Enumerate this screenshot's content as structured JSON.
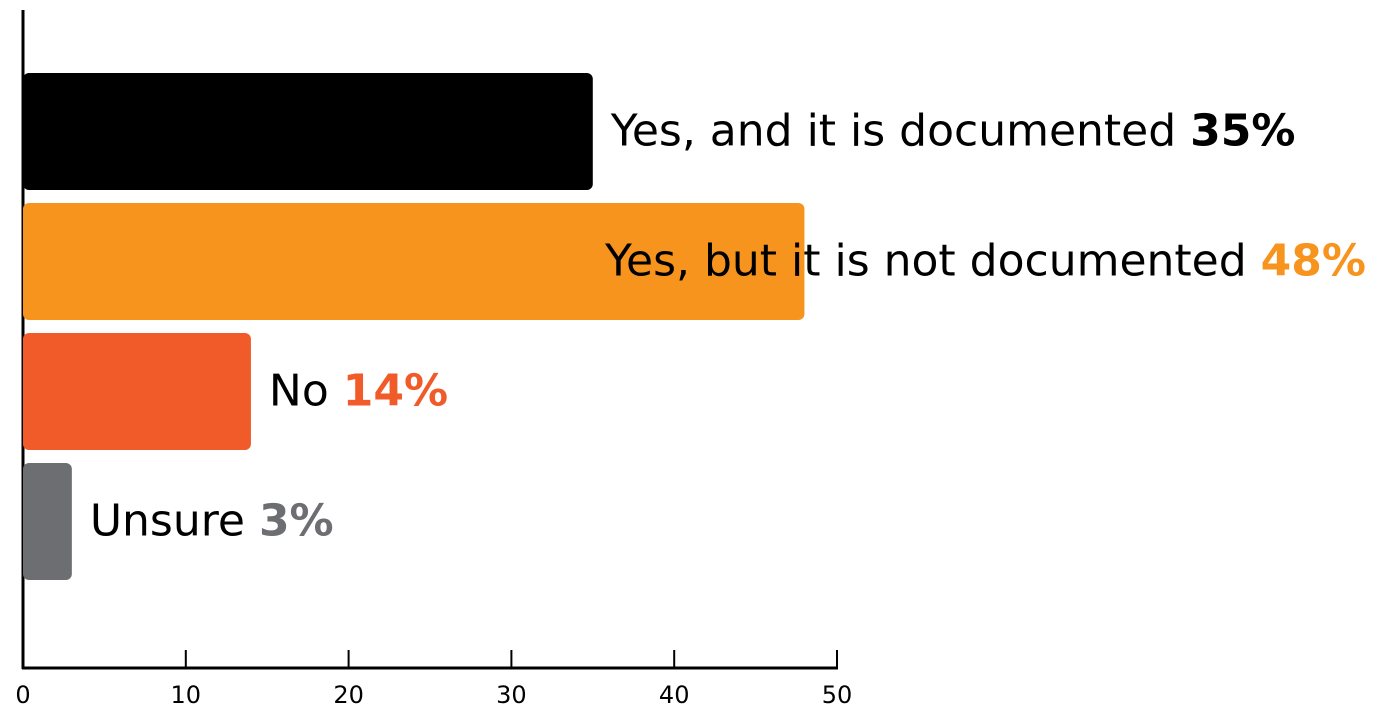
{
  "chart_data": {
    "type": "bar",
    "orientation": "horizontal",
    "categories": [
      "Yes, and it is documented",
      "Yes, but it is not documented",
      "No",
      "Unsure"
    ],
    "values": [
      35,
      48,
      14,
      3
    ],
    "value_labels": [
      "35%",
      "48%",
      "14%",
      "3%"
    ],
    "colors": [
      "#000000",
      "#f7941d",
      "#f15a29",
      "#6d6e71"
    ],
    "xlim": [
      0,
      50
    ],
    "xticks": [
      0,
      10,
      20,
      30,
      40,
      50
    ]
  }
}
